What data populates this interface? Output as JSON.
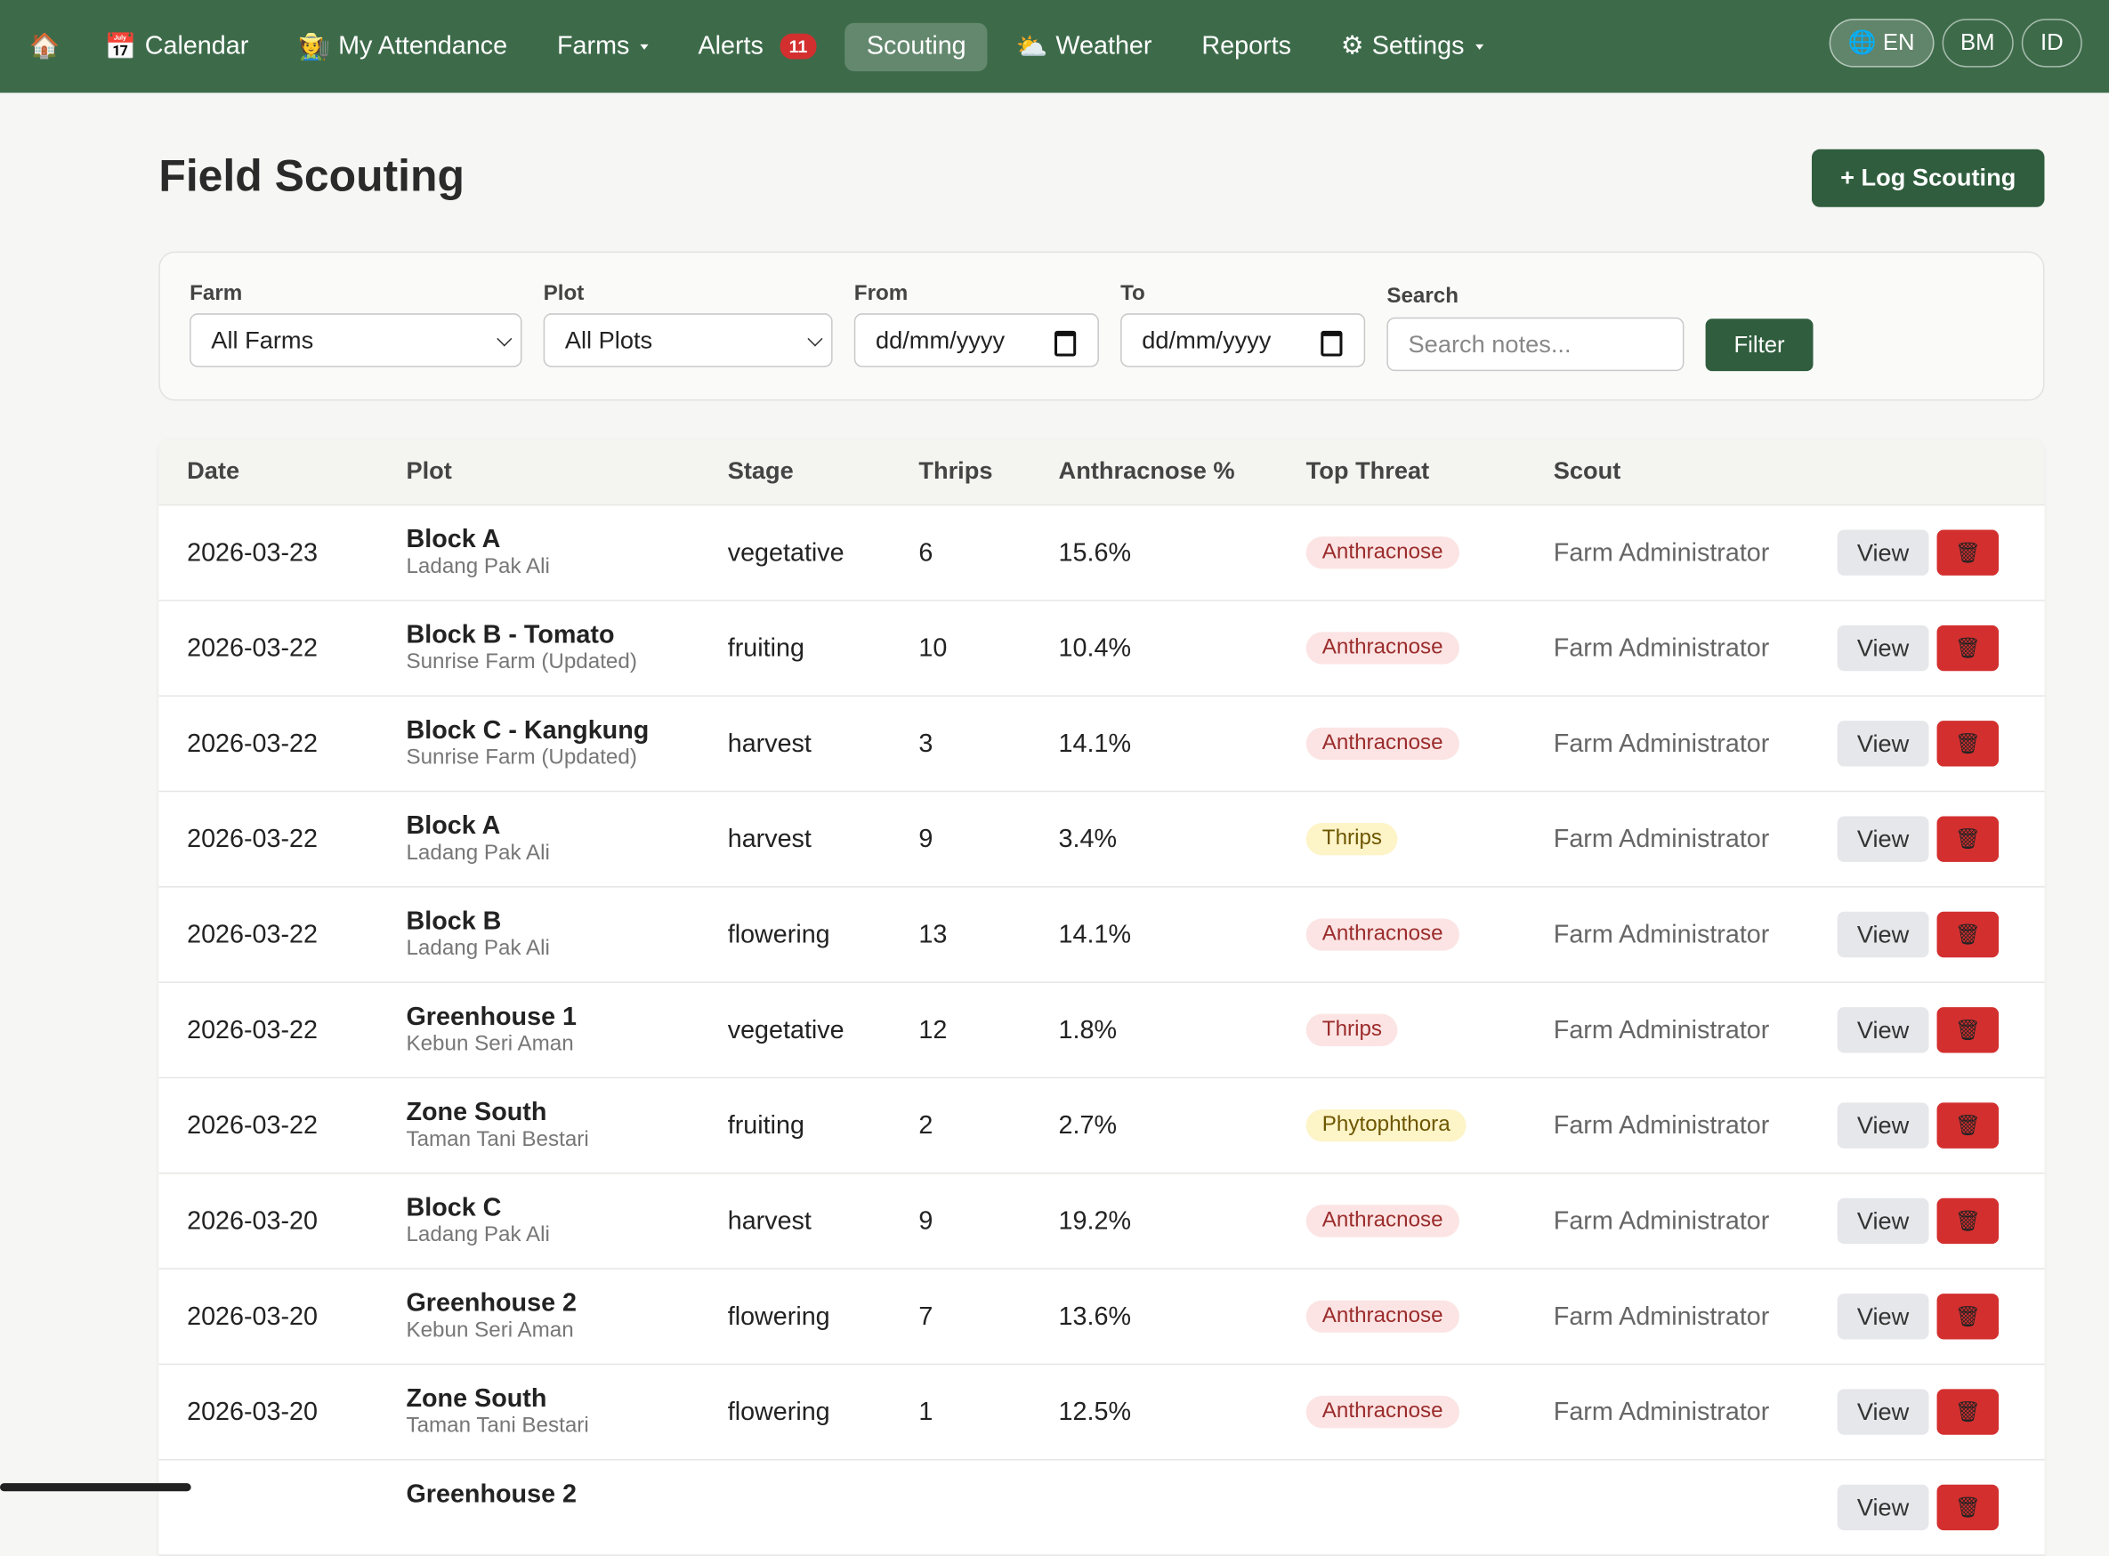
{
  "nav": {
    "home": "🏠",
    "items": [
      {
        "icon": "📅",
        "label": "Calendar"
      },
      {
        "icon": "🧑‍🌾",
        "label": "My Attendance"
      },
      {
        "label": "Farms",
        "caret": true
      },
      {
        "label": "Alerts",
        "badge": "11"
      },
      {
        "label": "Scouting",
        "active": true
      },
      {
        "icon": "⛅",
        "label": "Weather"
      },
      {
        "label": "Reports"
      },
      {
        "icon": "⚙",
        "label": "Settings",
        "caret": true
      }
    ],
    "languages": [
      {
        "icon": "🌐",
        "label": "EN",
        "active": true
      },
      {
        "label": "BM"
      },
      {
        "label": "ID"
      }
    ]
  },
  "header": {
    "title": "Field Scouting",
    "button": "+ Log Scouting"
  },
  "filters": {
    "farm_label": "Farm",
    "farm_value": "All Farms",
    "plot_label": "Plot",
    "plot_value": "All Plots",
    "from_label": "From",
    "from_value": "dd/mm/yyyy",
    "to_label": "To",
    "to_value": "dd/mm/yyyy",
    "search_label": "Search",
    "search_placeholder": "Search notes...",
    "button": "Filter"
  },
  "table": {
    "columns": [
      "Date",
      "Plot",
      "Stage",
      "Thrips",
      "Anthracnose %",
      "Top Threat",
      "Scout"
    ],
    "view": "View",
    "delete": "🗑",
    "rows": [
      {
        "date": "2026-03-23",
        "plot": "Block A",
        "farm": "Ladang Pak Ali",
        "stage": "vegetative",
        "thrips": 6,
        "anthracnose": "15.6%",
        "threat": "Anthracnose",
        "threat_color": "#fce4e4",
        "scout": "Farm Administrator"
      },
      {
        "date": "2026-03-22",
        "plot": "Block B - Tomato",
        "farm": "Sunrise Farm (Updated)",
        "stage": "fruiting",
        "thrips": 10,
        "anthracnose": "10.4%",
        "threat": "Anthracnose",
        "threat_color": "#fce4e4",
        "scout": "Farm Administrator"
      },
      {
        "date": "2026-03-22",
        "plot": "Block C - Kangkung",
        "farm": "Sunrise Farm (Updated)",
        "stage": "harvest",
        "thrips": 3,
        "anthracnose": "14.1%",
        "threat": "Anthracnose",
        "threat_color": "#fce4e4",
        "scout": "Farm Administrator"
      },
      {
        "date": "2026-03-22",
        "plot": "Block A",
        "farm": "Ladang Pak Ali",
        "stage": "harvest",
        "thrips": 9,
        "anthracnose": "3.4%",
        "threat": "Thrips",
        "threat_color": "#fdf4c8",
        "scout": "Farm Administrator"
      },
      {
        "date": "2026-03-22",
        "plot": "Block B",
        "farm": "Ladang Pak Ali",
        "stage": "flowering",
        "thrips": 13,
        "anthracnose": "14.1%",
        "threat": "Anthracnose",
        "threat_color": "#fce4e4",
        "scout": "Farm Administrator"
      },
      {
        "date": "2026-03-22",
        "plot": "Greenhouse 1",
        "farm": "Kebun Seri Aman",
        "stage": "vegetative",
        "thrips": 12,
        "anthracnose": "1.8%",
        "threat": "Thrips",
        "threat_color": "#fce4e4",
        "scout": "Farm Administrator"
      },
      {
        "date": "2026-03-22",
        "plot": "Zone South",
        "farm": "Taman Tani Bestari",
        "stage": "fruiting",
        "thrips": 2,
        "anthracnose": "2.7%",
        "threat": "Phytophthora",
        "threat_color": "#fdf4c8",
        "scout": "Farm Administrator"
      },
      {
        "date": "2026-03-20",
        "plot": "Block C",
        "farm": "Ladang Pak Ali",
        "stage": "harvest",
        "thrips": 9,
        "anthracnose": "19.2%",
        "threat": "Anthracnose",
        "threat_color": "#fce4e4",
        "scout": "Farm Administrator"
      },
      {
        "date": "2026-03-20",
        "plot": "Greenhouse 2",
        "farm": "Kebun Seri Aman",
        "stage": "flowering",
        "thrips": 7,
        "anthracnose": "13.6%",
        "threat": "Anthracnose",
        "threat_color": "#fce4e4",
        "scout": "Farm Administrator"
      },
      {
        "date": "2026-03-20",
        "plot": "Zone South",
        "farm": "Taman Tani Bestari",
        "stage": "flowering",
        "thrips": 1,
        "anthracnose": "12.5%",
        "threat": "Anthracnose",
        "threat_color": "#fce4e4",
        "scout": "Farm Administrator"
      },
      {
        "plot": "Greenhouse 2"
      }
    ]
  }
}
